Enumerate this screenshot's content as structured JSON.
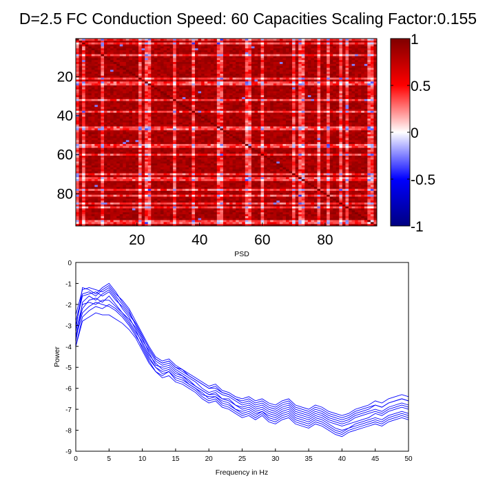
{
  "figure": {
    "title": "D=2.5 FC Conduction Speed: 60  Capacities Scaling Factor:0.155"
  },
  "chart_data": [
    {
      "type": "heatmap",
      "description_kind": "functional connectivity matrix",
      "title": "D=2.5 FC Conduction Speed: 60  Capacities Scaling Factor:0.155",
      "size": 96,
      "xticks": [
        20,
        40,
        60,
        80
      ],
      "yticks": [
        20,
        40,
        60,
        80
      ],
      "xlim": [
        0.5,
        96.5
      ],
      "ylim": [
        0.5,
        96.5
      ],
      "colorbar": {
        "min": -1,
        "max": 1,
        "ticks": [
          "1",
          "0.5",
          "0",
          "-0.5",
          "-1"
        ]
      },
      "colormap": [
        "#000080",
        "#0000ff",
        "#ffffff",
        "#ff0000",
        "#800000"
      ],
      "diagonal_value": 1,
      "background_value": 0.85,
      "light_lines": [
        1,
        3,
        9,
        21,
        23,
        24,
        32,
        38,
        46,
        47,
        55,
        56,
        60,
        70,
        72,
        73,
        78,
        81,
        85,
        87,
        94,
        95
      ]
    },
    {
      "type": "line",
      "title": "PSD",
      "xlabel": "Frequency in Hz",
      "ylabel": "Power",
      "xlim": [
        0,
        50
      ],
      "ylim": [
        -9,
        0
      ],
      "xticks": [
        0,
        5,
        10,
        15,
        20,
        25,
        30,
        35,
        40,
        45,
        50
      ],
      "yticks": [
        0,
        -1,
        -2,
        -3,
        -4,
        -5,
        -6,
        -7,
        -8,
        -9
      ],
      "line_color": "#0000ff",
      "x": [
        0,
        1,
        2,
        3,
        4,
        5,
        6,
        7,
        8,
        9,
        10,
        11,
        12,
        13,
        14,
        15,
        16,
        17,
        18,
        19,
        20,
        21,
        22,
        23,
        24,
        25,
        26,
        27,
        28,
        29,
        30,
        31,
        32,
        33,
        34,
        35,
        36,
        37,
        38,
        39,
        40,
        41,
        42,
        43,
        44,
        45,
        46,
        47,
        48,
        49,
        50
      ],
      "series": [
        {
          "values": [
            -3.2,
            -1.2,
            -1.3,
            -1.5,
            -1.2,
            -1.0,
            -1.4,
            -1.9,
            -2.3,
            -3.0,
            -3.6,
            -4.3,
            -4.9,
            -5.0,
            -4.9,
            -5.2,
            -5.4,
            -5.6,
            -5.9,
            -6.1,
            -6.3,
            -6.2,
            -6.5,
            -6.5,
            -6.8,
            -7.0,
            -6.9,
            -7.1,
            -7.0,
            -7.2,
            -7.3,
            -7.1,
            -7.0,
            -7.3,
            -7.4,
            -7.5,
            -7.3,
            -7.4,
            -7.6,
            -7.7,
            -7.8,
            -7.7,
            -7.6,
            -7.5,
            -7.4,
            -7.2,
            -7.3,
            -7.1,
            -7.0,
            -6.9,
            -7.0
          ]
        },
        {
          "values": [
            -3.8,
            -1.9,
            -1.6,
            -1.8,
            -1.5,
            -1.3,
            -1.7,
            -2.2,
            -2.6,
            -3.2,
            -3.9,
            -4.5,
            -5.0,
            -5.2,
            -5.1,
            -5.4,
            -5.5,
            -5.8,
            -6.0,
            -6.2,
            -6.5,
            -6.4,
            -6.6,
            -6.7,
            -7.0,
            -7.1,
            -7.0,
            -7.2,
            -7.1,
            -7.3,
            -7.4,
            -7.2,
            -7.1,
            -7.4,
            -7.5,
            -7.6,
            -7.4,
            -7.5,
            -7.7,
            -7.9,
            -8.0,
            -7.9,
            -7.7,
            -7.6,
            -7.5,
            -7.4,
            -7.5,
            -7.3,
            -7.2,
            -7.1,
            -7.2
          ]
        },
        {
          "values": [
            -4.0,
            -2.6,
            -2.3,
            -2.1,
            -2.2,
            -2.0,
            -2.2,
            -2.5,
            -2.9,
            -3.4,
            -4.1,
            -4.7,
            -5.2,
            -5.4,
            -5.2,
            -5.6,
            -5.7,
            -5.9,
            -6.1,
            -6.4,
            -6.6,
            -6.5,
            -6.8,
            -6.9,
            -7.1,
            -7.3,
            -7.2,
            -7.4,
            -7.2,
            -7.5,
            -7.6,
            -7.4,
            -7.3,
            -7.6,
            -7.7,
            -7.8,
            -7.6,
            -7.7,
            -7.9,
            -8.1,
            -8.2,
            -8.0,
            -7.9,
            -7.8,
            -7.7,
            -7.6,
            -7.7,
            -7.5,
            -7.4,
            -7.3,
            -7.4
          ]
        },
        {
          "values": [
            -3.0,
            -1.6,
            -1.5,
            -1.4,
            -1.6,
            -1.4,
            -1.8,
            -2.1,
            -2.5,
            -2.9,
            -3.5,
            -4.1,
            -4.6,
            -4.8,
            -4.7,
            -5.0,
            -5.1,
            -5.4,
            -5.6,
            -5.8,
            -6.0,
            -5.9,
            -6.2,
            -6.3,
            -6.5,
            -6.6,
            -6.5,
            -6.7,
            -6.6,
            -6.8,
            -6.9,
            -6.7,
            -6.6,
            -6.9,
            -7.0,
            -7.1,
            -6.9,
            -7.0,
            -7.2,
            -7.3,
            -7.4,
            -7.3,
            -7.1,
            -7.0,
            -6.9,
            -6.8,
            -6.9,
            -6.7,
            -6.6,
            -6.5,
            -6.6
          ]
        },
        {
          "values": [
            -3.5,
            -2.2,
            -1.8,
            -1.7,
            -1.9,
            -1.6,
            -2.0,
            -2.4,
            -2.8,
            -3.3,
            -3.8,
            -4.4,
            -4.8,
            -5.1,
            -5.0,
            -5.3,
            -5.4,
            -5.7,
            -5.9,
            -6.1,
            -6.3,
            -6.3,
            -6.5,
            -6.6,
            -6.8,
            -6.9,
            -6.8,
            -7.0,
            -6.9,
            -7.1,
            -7.2,
            -7.0,
            -6.9,
            -7.2,
            -7.3,
            -7.4,
            -7.2,
            -7.3,
            -7.5,
            -7.6,
            -7.7,
            -7.6,
            -7.4,
            -7.3,
            -7.2,
            -7.1,
            -7.2,
            -7.0,
            -6.9,
            -6.8,
            -6.9
          ]
        },
        {
          "values": [
            -2.8,
            -1.5,
            -1.4,
            -1.6,
            -1.3,
            -1.1,
            -1.5,
            -1.8,
            -2.2,
            -2.8,
            -3.4,
            -4.0,
            -4.5,
            -4.7,
            -4.6,
            -4.9,
            -5.1,
            -5.3,
            -5.5,
            -5.7,
            -5.9,
            -5.8,
            -6.1,
            -6.2,
            -6.4,
            -6.5,
            -6.4,
            -6.6,
            -6.5,
            -6.7,
            -6.8,
            -6.6,
            -6.5,
            -6.8,
            -6.9,
            -7.0,
            -6.8,
            -6.9,
            -7.1,
            -7.2,
            -7.3,
            -7.2,
            -7.0,
            -6.9,
            -6.8,
            -6.6,
            -6.7,
            -6.5,
            -6.4,
            -6.3,
            -6.4
          ]
        },
        {
          "values": [
            -3.3,
            -2.0,
            -1.9,
            -2.0,
            -1.8,
            -1.8,
            -2.1,
            -2.4,
            -2.7,
            -3.1,
            -3.7,
            -4.2,
            -4.7,
            -4.9,
            -4.8,
            -5.1,
            -5.3,
            -5.5,
            -5.7,
            -6.0,
            -6.2,
            -6.1,
            -6.3,
            -6.4,
            -6.6,
            -6.8,
            -6.7,
            -6.9,
            -6.8,
            -7.0,
            -7.1,
            -6.9,
            -6.8,
            -7.1,
            -7.2,
            -7.3,
            -7.1,
            -7.2,
            -7.4,
            -7.5,
            -7.6,
            -7.5,
            -7.3,
            -7.2,
            -7.1,
            -7.0,
            -7.1,
            -6.9,
            -6.8,
            -6.7,
            -6.8
          ]
        },
        {
          "values": [
            -4.0,
            -2.8,
            -2.6,
            -2.4,
            -2.5,
            -2.5,
            -2.7,
            -2.9,
            -3.2,
            -3.6,
            -4.2,
            -4.8,
            -5.2,
            -5.5,
            -5.4,
            -5.7,
            -5.8,
            -6.0,
            -6.2,
            -6.5,
            -6.7,
            -6.6,
            -6.9,
            -7.0,
            -7.2,
            -7.4,
            -7.3,
            -7.5,
            -7.3,
            -7.6,
            -7.7,
            -7.5,
            -7.4,
            -7.7,
            -7.8,
            -7.9,
            -7.7,
            -7.8,
            -8.0,
            -8.2,
            -8.3,
            -8.1,
            -8.0,
            -7.9,
            -7.8,
            -7.7,
            -7.8,
            -7.6,
            -7.5,
            -7.4,
            -7.5
          ]
        },
        {
          "values": [
            -3.6,
            -2.4,
            -2.1,
            -1.9,
            -2.0,
            -2.1,
            -2.3,
            -2.6,
            -3.0,
            -3.5,
            -4.0,
            -4.6,
            -5.0,
            -5.3,
            -5.2,
            -5.5,
            -5.6,
            -5.8,
            -6.0,
            -6.3,
            -6.4,
            -6.4,
            -6.7,
            -6.8,
            -7.0,
            -7.2,
            -7.1,
            -7.3,
            -7.1,
            -7.4,
            -7.5,
            -7.3,
            -7.2,
            -7.5,
            -7.6,
            -7.7,
            -7.5,
            -7.6,
            -7.8,
            -8.0,
            -8.1,
            -7.9,
            -7.8,
            -7.7,
            -7.6,
            -7.5,
            -7.6,
            -7.4,
            -7.3,
            -7.2,
            -7.3
          ]
        },
        {
          "values": [
            -2.5,
            -1.3,
            -1.2,
            -1.3,
            -1.4,
            -1.2,
            -1.6,
            -2.0,
            -2.4,
            -2.9,
            -3.5,
            -4.1,
            -4.6,
            -4.8,
            -4.7,
            -5.0,
            -5.2,
            -5.4,
            -5.6,
            -5.8,
            -6.0,
            -6.0,
            -6.2,
            -6.3,
            -6.5,
            -6.7,
            -6.6,
            -6.8,
            -6.7,
            -6.9,
            -7.0,
            -6.8,
            -6.7,
            -7.0,
            -7.1,
            -7.2,
            -7.0,
            -7.1,
            -7.3,
            -7.4,
            -7.5,
            -7.4,
            -7.2,
            -7.1,
            -7.0,
            -6.8,
            -6.9,
            -6.7,
            -6.6,
            -6.5,
            -6.6
          ]
        }
      ]
    }
  ]
}
